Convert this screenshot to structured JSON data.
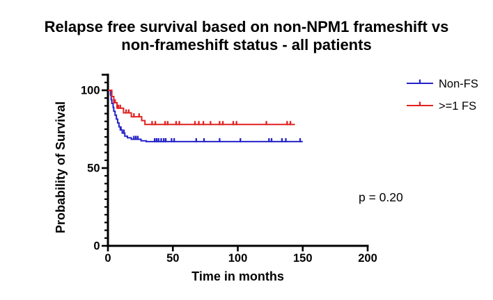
{
  "title": {
    "line1": "Relapse free survival based on non-NPM1 frameshift vs",
    "line2": "non-frameshift status - all patients"
  },
  "colors": {
    "axis": "#000000",
    "non_fs": "#2423C9",
    "ge1_fs": "#E12120",
    "text": "#000000"
  },
  "legend": {
    "items": [
      {
        "id": "non-fs",
        "label": "Non-FS",
        "color": "#2423C9"
      },
      {
        "id": "ge1-fs",
        "label": ">=1 FS",
        "color": "#E12120"
      }
    ]
  },
  "chart_data": {
    "type": "line",
    "subtype": "kaplan-meier-step",
    "title": "Relapse free survival based on non-NPM1 frameshift vs non-frameshift status - all patients",
    "xlabel": "Time in months",
    "ylabel": "Probability of Survival",
    "xlim": [
      0,
      200
    ],
    "ylim": [
      0,
      110
    ],
    "x_ticks": [
      0,
      50,
      100,
      150,
      200
    ],
    "y_ticks": [
      0,
      50,
      100
    ],
    "y_minor_step": 5,
    "grid": false,
    "legend_position": "right-top",
    "series": [
      {
        "name": "Non-FS",
        "color": "#2423C9",
        "start": [
          0,
          100
        ],
        "steps": [
          [
            2,
            97
          ],
          [
            2.5,
            94
          ],
          [
            3,
            91.5
          ],
          [
            4,
            89
          ],
          [
            4.5,
            86.5
          ],
          [
            5.5,
            84
          ],
          [
            6.5,
            81.5
          ],
          [
            7.5,
            79
          ],
          [
            8.5,
            76.5
          ],
          [
            9.5,
            74.5
          ],
          [
            11,
            72.5
          ],
          [
            13,
            70.5
          ],
          [
            15,
            69.5
          ],
          [
            18,
            68.5
          ],
          [
            25.5,
            67.5
          ],
          [
            29.5,
            67
          ]
        ],
        "end_time": 150,
        "censors": [
          [
            10,
            74.5
          ],
          [
            12.3,
            72.5
          ],
          [
            20,
            68.5
          ],
          [
            21.5,
            68.5
          ],
          [
            23,
            68.5
          ],
          [
            36,
            67
          ],
          [
            37.5,
            67
          ],
          [
            39,
            67
          ],
          [
            41,
            67
          ],
          [
            43,
            67
          ],
          [
            44.5,
            67
          ],
          [
            49,
            67
          ],
          [
            51,
            67
          ],
          [
            68,
            67
          ],
          [
            74,
            67
          ],
          [
            86,
            67
          ],
          [
            102,
            67
          ],
          [
            124,
            67
          ],
          [
            126,
            67
          ],
          [
            134,
            67
          ],
          [
            137,
            67
          ],
          [
            148,
            67
          ]
        ]
      },
      {
        "name": ">=1 FS",
        "color": "#E12120",
        "start": [
          0,
          100
        ],
        "steps": [
          [
            3,
            96
          ],
          [
            4.5,
            92
          ],
          [
            7,
            88.5
          ],
          [
            12,
            85.5
          ],
          [
            18,
            83
          ],
          [
            26,
            80.5
          ],
          [
            28.5,
            78
          ]
        ],
        "end_time": 144,
        "censors": [
          [
            5.5,
            92
          ],
          [
            8,
            88.5
          ],
          [
            9.5,
            88.5
          ],
          [
            14,
            85.5
          ],
          [
            16,
            85.5
          ],
          [
            20,
            83
          ],
          [
            24,
            83
          ],
          [
            34,
            78
          ],
          [
            36.5,
            78
          ],
          [
            44,
            78
          ],
          [
            46,
            78
          ],
          [
            52.5,
            78
          ],
          [
            55,
            78
          ],
          [
            67,
            78
          ],
          [
            70,
            78
          ],
          [
            73.5,
            78
          ],
          [
            79,
            78
          ],
          [
            86,
            78
          ],
          [
            88.5,
            78
          ],
          [
            96.5,
            78
          ],
          [
            99,
            78
          ],
          [
            122,
            78
          ],
          [
            138,
            78
          ],
          [
            140.5,
            78
          ]
        ]
      }
    ],
    "annotations": [
      {
        "id": "p-value",
        "text": "p = 0.20"
      }
    ]
  }
}
